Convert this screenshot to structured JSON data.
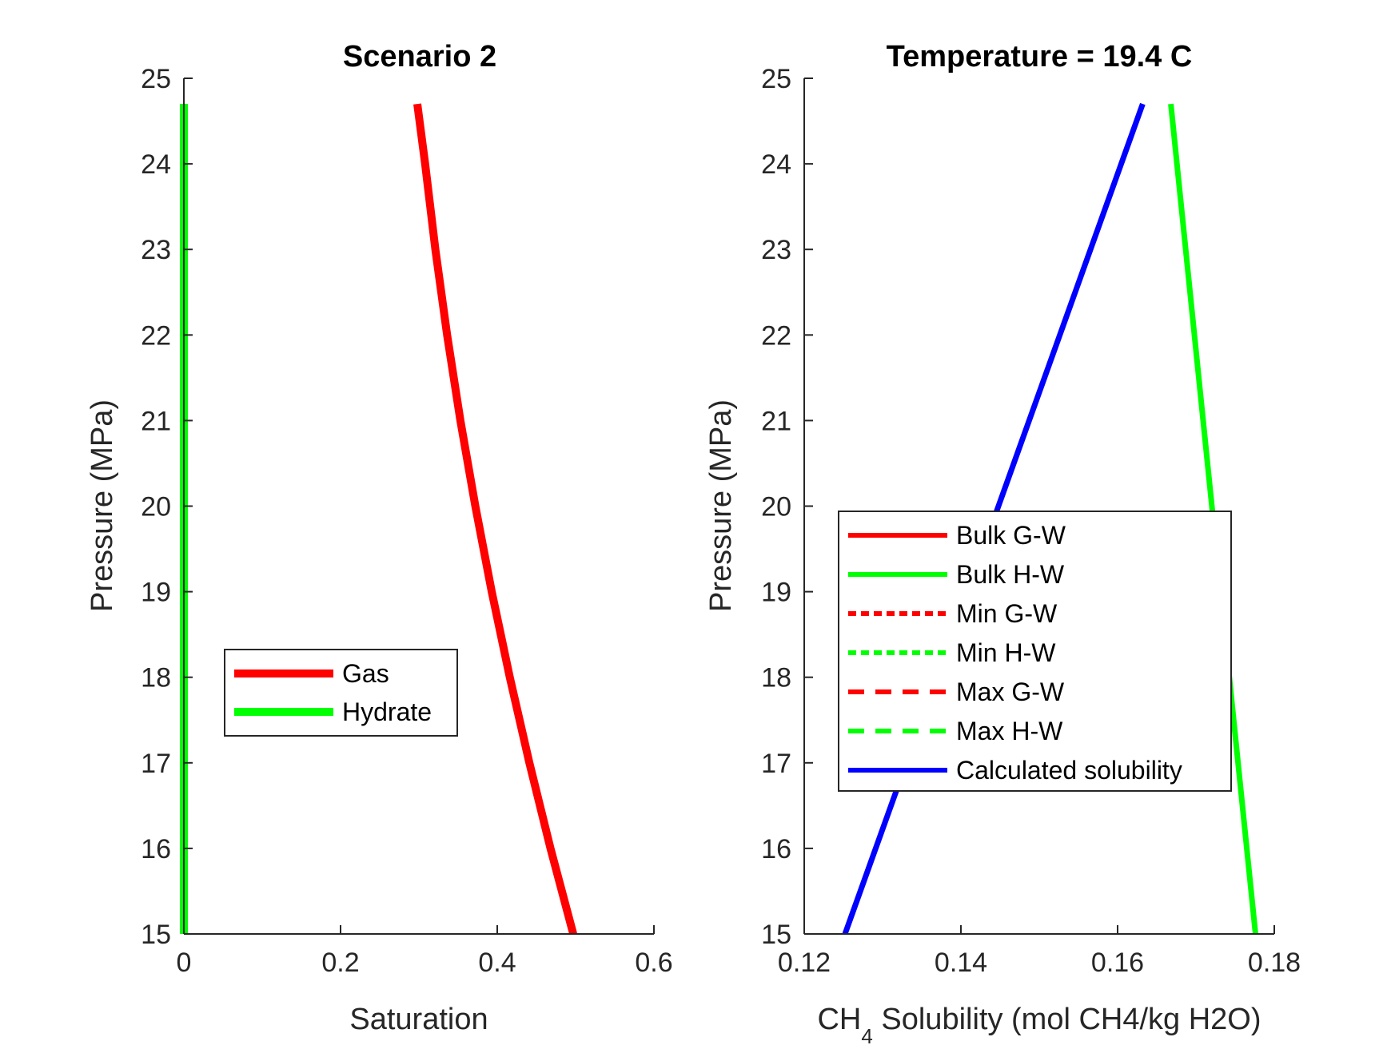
{
  "chart_data": [
    {
      "type": "line",
      "title": "Scenario 2",
      "xlabel": "Saturation",
      "ylabel": "Pressure (MPa)",
      "xlim": [
        0,
        0.6
      ],
      "ylim": [
        15,
        25
      ],
      "xticks": [
        "0",
        "0.2",
        "0.4",
        "0.6"
      ],
      "yticks": [
        "15",
        "16",
        "17",
        "18",
        "19",
        "20",
        "21",
        "22",
        "23",
        "24",
        "25"
      ],
      "grid": false,
      "legend_position": "lower-left",
      "series": [
        {
          "name": "Gas",
          "color": "#ff0000",
          "style": "solid",
          "points": [
            [
              0.497,
              15
            ],
            [
              0.468,
              16
            ],
            [
              0.441,
              17
            ],
            [
              0.416,
              18
            ],
            [
              0.393,
              19
            ],
            [
              0.372,
              20
            ],
            [
              0.353,
              21
            ],
            [
              0.336,
              22
            ],
            [
              0.321,
              23
            ],
            [
              0.308,
              24
            ],
            [
              0.298,
              24.7
            ]
          ]
        },
        {
          "name": "Hydrate",
          "color": "#00ff00",
          "style": "solid",
          "points": [
            [
              0,
              15
            ],
            [
              0,
              24.7
            ]
          ]
        }
      ]
    },
    {
      "type": "line",
      "title": "Temperature = 19.4 C",
      "xlabel": "CH",
      "xlabel_sub": "4",
      "xlabel_rest": " Solubility (mol CH4/kg H2O)",
      "ylabel": "Pressure (MPa)",
      "xlim": [
        0.12,
        0.18
      ],
      "ylim": [
        15,
        25
      ],
      "xticks": [
        "0.12",
        "0.14",
        "0.16",
        "0.18"
      ],
      "yticks": [
        "15",
        "16",
        "17",
        "18",
        "19",
        "20",
        "21",
        "22",
        "23",
        "24",
        "25"
      ],
      "grid": false,
      "legend_position": "center-left",
      "series": [
        {
          "name": "Bulk G-W",
          "color": "#ff0000",
          "style": "solid",
          "points": []
        },
        {
          "name": "Bulk H-W",
          "color": "#00ff00",
          "style": "solid",
          "points": [
            [
              0.1776,
              15
            ],
            [
              0.1668,
              24.7
            ]
          ]
        },
        {
          "name": "Min G-W",
          "color": "#ff0000",
          "style": "dotted",
          "points": []
        },
        {
          "name": "Min H-W",
          "color": "#00ff00",
          "style": "dotted",
          "points": []
        },
        {
          "name": "Max G-W",
          "color": "#ff0000",
          "style": "dashed",
          "points": []
        },
        {
          "name": "Max H-W",
          "color": "#00ff00",
          "style": "dashed",
          "points": []
        },
        {
          "name": "Calculated solubility",
          "color": "#0000ff",
          "style": "solid",
          "points": [
            [
              0.1252,
              15
            ],
            [
              0.1632,
              24.7
            ]
          ]
        }
      ]
    }
  ]
}
